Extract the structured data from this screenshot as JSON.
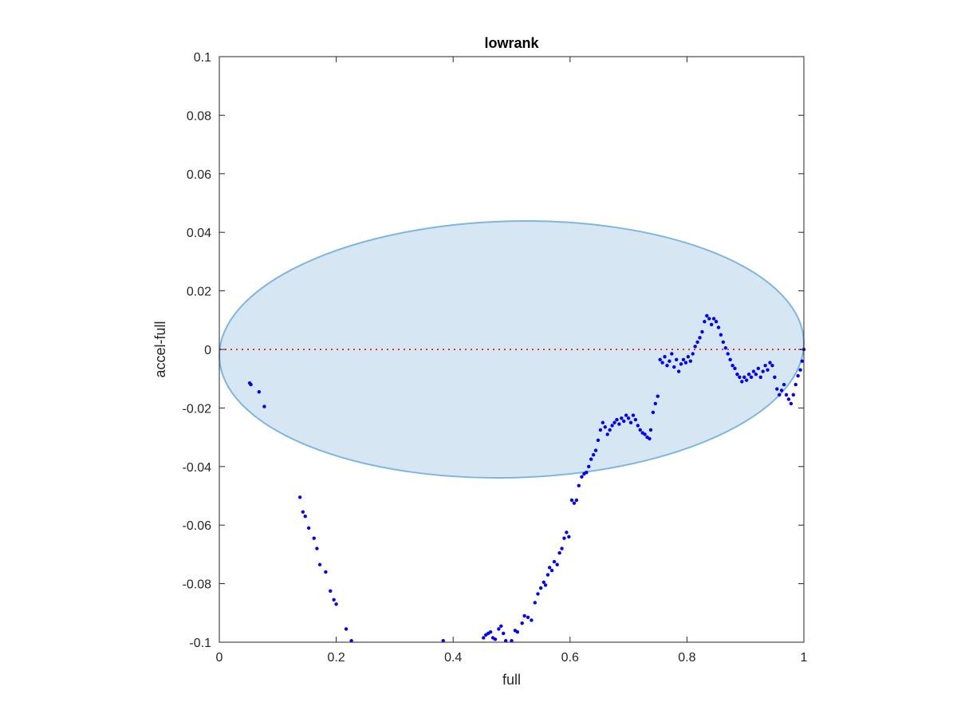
{
  "chart_data": {
    "type": "scatter",
    "title": "lowrank",
    "xlabel": "full",
    "ylabel": "accel-full",
    "xlim": [
      0,
      1
    ],
    "ylim": [
      -0.1,
      0.1
    ],
    "xticks": [
      0,
      0.2,
      0.4,
      0.6,
      0.8,
      1
    ],
    "xtick_labels": [
      "0",
      "0.2",
      "0.4",
      "0.6",
      "0.8",
      "1"
    ],
    "yticks": [
      -0.1,
      -0.08,
      -0.06,
      -0.04,
      -0.02,
      0,
      0.02,
      0.04,
      0.06,
      0.08,
      0.1
    ],
    "ytick_labels": [
      "-0.1",
      "-0.08",
      "-0.06",
      "-0.04",
      "-0.02",
      "0",
      "0.02",
      "0.04",
      "0.06",
      "0.08",
      "0.1"
    ],
    "grid": false,
    "reference_line": {
      "y": 0,
      "color": "#e8312a",
      "style": "dotted"
    },
    "ellipse": {
      "center": [
        0.5,
        0
      ],
      "semi_axes": [
        0.5,
        0.0438
      ],
      "rotation_deg": -1.5,
      "fill": "#d6e7f3",
      "stroke": "#7fb6dc"
    },
    "series": [
      {
        "color": "#0000ff",
        "points": [
          [
            0.052,
            -0.0115
          ],
          [
            0.054,
            -0.012
          ],
          [
            0.068,
            -0.0145
          ],
          [
            0.077,
            -0.0195
          ],
          [
            0.138,
            -0.0505
          ],
          [
            0.143,
            -0.0555
          ],
          [
            0.147,
            -0.057
          ],
          [
            0.153,
            -0.061
          ],
          [
            0.162,
            -0.0645
          ],
          [
            0.167,
            -0.068
          ],
          [
            0.172,
            -0.0735
          ],
          [
            0.182,
            -0.076
          ],
          [
            0.19,
            -0.0825
          ],
          [
            0.196,
            -0.0855
          ],
          [
            0.2,
            -0.087
          ],
          [
            0.217,
            -0.0955
          ],
          [
            0.226,
            -0.0995
          ],
          [
            0.383,
            -0.0995
          ],
          [
            0.452,
            -0.0985
          ],
          [
            0.456,
            -0.0975
          ],
          [
            0.46,
            -0.097
          ],
          [
            0.464,
            -0.0965
          ],
          [
            0.468,
            -0.0985
          ],
          [
            0.472,
            -0.099
          ],
          [
            0.478,
            -0.0955
          ],
          [
            0.482,
            -0.0945
          ],
          [
            0.486,
            -0.097
          ],
          [
            0.49,
            -0.0995
          ],
          [
            0.5,
            -0.0995
          ],
          [
            0.506,
            -0.096
          ],
          [
            0.51,
            -0.0965
          ],
          [
            0.518,
            -0.0935
          ],
          [
            0.522,
            -0.091
          ],
          [
            0.528,
            -0.0915
          ],
          [
            0.534,
            -0.0925
          ],
          [
            0.54,
            -0.0865
          ],
          [
            0.545,
            -0.0835
          ],
          [
            0.55,
            -0.0815
          ],
          [
            0.555,
            -0.0795
          ],
          [
            0.558,
            -0.0805
          ],
          [
            0.562,
            -0.077
          ],
          [
            0.565,
            -0.0745
          ],
          [
            0.569,
            -0.0755
          ],
          [
            0.573,
            -0.0725
          ],
          [
            0.578,
            -0.0735
          ],
          [
            0.582,
            -0.0695
          ],
          [
            0.586,
            -0.068
          ],
          [
            0.59,
            -0.0645
          ],
          [
            0.594,
            -0.0625
          ],
          [
            0.598,
            -0.064
          ],
          [
            0.603,
            -0.0515
          ],
          [
            0.607,
            -0.0525
          ],
          [
            0.611,
            -0.0515
          ],
          [
            0.615,
            -0.0465
          ],
          [
            0.62,
            -0.0435
          ],
          [
            0.624,
            -0.0425
          ],
          [
            0.628,
            -0.042
          ],
          [
            0.632,
            -0.04
          ],
          [
            0.636,
            -0.0375
          ],
          [
            0.64,
            -0.036
          ],
          [
            0.644,
            -0.0345
          ],
          [
            0.648,
            -0.031
          ],
          [
            0.652,
            -0.0275
          ],
          [
            0.656,
            -0.025
          ],
          [
            0.66,
            -0.0265
          ],
          [
            0.664,
            -0.029
          ],
          [
            0.668,
            -0.0275
          ],
          [
            0.672,
            -0.026
          ],
          [
            0.676,
            -0.025
          ],
          [
            0.68,
            -0.024
          ],
          [
            0.684,
            -0.0255
          ],
          [
            0.688,
            -0.0235
          ],
          [
            0.692,
            -0.0245
          ],
          [
            0.696,
            -0.0225
          ],
          [
            0.7,
            -0.0235
          ],
          [
            0.704,
            -0.025
          ],
          [
            0.708,
            -0.0225
          ],
          [
            0.712,
            -0.024
          ],
          [
            0.716,
            -0.026
          ],
          [
            0.72,
            -0.0275
          ],
          [
            0.724,
            -0.0285
          ],
          [
            0.728,
            -0.029
          ],
          [
            0.732,
            -0.03
          ],
          [
            0.736,
            -0.0305
          ],
          [
            0.738,
            -0.0275
          ],
          [
            0.742,
            -0.0215
          ],
          [
            0.746,
            -0.0185
          ],
          [
            0.75,
            -0.016
          ],
          [
            0.754,
            -0.0035
          ],
          [
            0.758,
            -0.0045
          ],
          [
            0.762,
            -0.0025
          ],
          [
            0.766,
            -0.0055
          ],
          [
            0.77,
            -0.004
          ],
          [
            0.774,
            -0.0015
          ],
          [
            0.778,
            -0.006
          ],
          [
            0.782,
            -0.0035
          ],
          [
            0.786,
            -0.0075
          ],
          [
            0.79,
            -0.005
          ],
          [
            0.794,
            -0.0035
          ],
          [
            0.798,
            -0.0045
          ],
          [
            0.802,
            -0.0025
          ],
          [
            0.806,
            -0.004
          ],
          [
            0.81,
            -0.0015
          ],
          [
            0.814,
            0.001
          ],
          [
            0.818,
            0.0025
          ],
          [
            0.822,
            0.004
          ],
          [
            0.826,
            0.006
          ],
          [
            0.83,
            0.0095
          ],
          [
            0.834,
            0.0115
          ],
          [
            0.838,
            0.0105
          ],
          [
            0.842,
            0.0085
          ],
          [
            0.846,
            0.0105
          ],
          [
            0.85,
            0.0095
          ],
          [
            0.854,
            0.0075
          ],
          [
            0.858,
            0.005
          ],
          [
            0.862,
            0.0025
          ],
          [
            0.866,
            0.0005
          ],
          [
            0.87,
            -0.0015
          ],
          [
            0.874,
            -0.0035
          ],
          [
            0.878,
            -0.0055
          ],
          [
            0.882,
            -0.0065
          ],
          [
            0.886,
            -0.0085
          ],
          [
            0.89,
            -0.0095
          ],
          [
            0.894,
            -0.011
          ],
          [
            0.898,
            -0.0095
          ],
          [
            0.902,
            -0.0105
          ],
          [
            0.906,
            -0.0085
          ],
          [
            0.91,
            -0.0095
          ],
          [
            0.914,
            -0.0075
          ],
          [
            0.918,
            -0.0085
          ],
          [
            0.922,
            -0.0065
          ],
          [
            0.926,
            -0.0095
          ],
          [
            0.93,
            -0.0075
          ],
          [
            0.934,
            -0.0055
          ],
          [
            0.938,
            -0.007
          ],
          [
            0.942,
            -0.0045
          ],
          [
            0.946,
            -0.0055
          ],
          [
            0.95,
            -0.0095
          ],
          [
            0.954,
            -0.0135
          ],
          [
            0.958,
            -0.0155
          ],
          [
            0.962,
            -0.014
          ],
          [
            0.966,
            -0.012
          ],
          [
            0.97,
            -0.0155
          ],
          [
            0.974,
            -0.017
          ],
          [
            0.978,
            -0.0185
          ],
          [
            0.982,
            -0.0155
          ],
          [
            0.986,
            -0.012
          ],
          [
            0.99,
            -0.009
          ],
          [
            0.994,
            -0.007
          ],
          [
            0.997,
            -0.004
          ],
          [
            1.0,
            0.0
          ]
        ]
      }
    ]
  }
}
